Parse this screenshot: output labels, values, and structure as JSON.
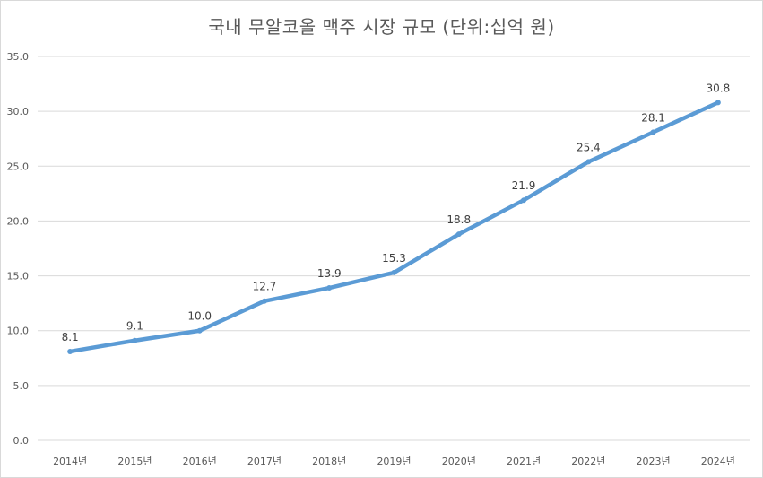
{
  "chart_data": {
    "type": "line",
    "title": "국내 무알코올 맥주 시장 규모 (단위:십억 원)",
    "xlabel": "",
    "ylabel": "",
    "categories": [
      "2014년",
      "2015년",
      "2016년",
      "2017년",
      "2018년",
      "2019년",
      "2020년",
      "2021년",
      "2022년",
      "2023년",
      "2024년"
    ],
    "series": [
      {
        "values": [
          8.1,
          9.1,
          10.0,
          12.7,
          13.9,
          15.3,
          18.8,
          21.9,
          25.4,
          28.1,
          30.8
        ]
      }
    ],
    "data_labels": [
      "8.1",
      "9.1",
      "10.0",
      "12.7",
      "13.9",
      "15.3",
      "18.8",
      "21.9",
      "25.4",
      "28.1",
      "30.8"
    ],
    "y_ticks": [
      "0.0",
      "5.0",
      "10.0",
      "15.0",
      "20.0",
      "25.0",
      "30.0",
      "35.0"
    ],
    "ylim": [
      0,
      35
    ],
    "grid": true,
    "legend": "none",
    "line_color": "#5b9bd5",
    "grid_color": "#d9d9d9"
  }
}
